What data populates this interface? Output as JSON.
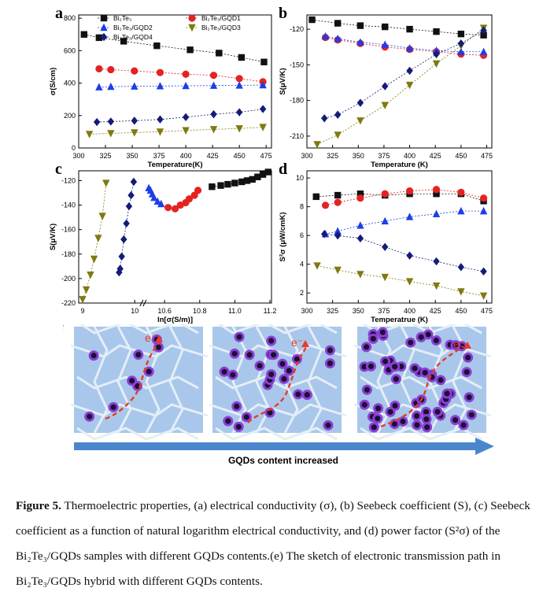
{
  "figure": {
    "caption_bold": "Figure 5.",
    "caption_text": "Thermoelectric properties, (a) electrical conductivity (σ), (b) Seebeck coefficient (S), (c) Seebeck coefficient as a function of natural logarithm electrical conductivity, and (d) power factor (S²σ) of the Bi₂Te₃/GQDs samples with different GQDs contents.(e) The sketch of electronic transmission path in Bi₂Te₃/GQDs hybrid with different GQDs contents.",
    "sketch_label": "e",
    "sketch_arrow_text": "GQDs content increased",
    "electron_label": "e⁻",
    "colors": {
      "cell": "#a9c7ea",
      "border": "#e4eef8",
      "dot_edge": "#8b3fd6",
      "dot_core": "#1a1030",
      "path": "#e83a2a",
      "arrow": "#4a86cc"
    }
  },
  "chart_data": [
    {
      "panel": "a",
      "type": "scatter",
      "xlabel": "Temperature(K)",
      "ylabel": "σ(S/cm)",
      "xlim": [
        300,
        480
      ],
      "ylim": [
        0,
        820
      ],
      "xticks": [
        300,
        325,
        350,
        375,
        400,
        425,
        450,
        475
      ],
      "yticks": [
        0,
        200,
        400,
        600,
        800
      ],
      "legend": "top",
      "series": [
        {
          "name": "Bi₂Te₃",
          "color": "#111111",
          "marker": "square",
          "x": [
            305,
            319,
            342,
            373,
            404,
            431,
            452,
            473
          ],
          "y": [
            700,
            680,
            658,
            630,
            605,
            585,
            558,
            530
          ]
        },
        {
          "name": "Bi₂Te₃/GQD1",
          "color": "#e52222",
          "marker": "circle",
          "x": [
            319,
            330,
            352,
            376,
            400,
            426,
            450,
            472
          ],
          "y": [
            488,
            483,
            475,
            465,
            455,
            448,
            428,
            408
          ]
        },
        {
          "name": "Bi₂Te₃/GQD2",
          "color": "#1d3ee6",
          "marker": "triangle-up",
          "x": [
            319,
            330,
            352,
            376,
            400,
            426,
            450,
            472
          ],
          "y": [
            375,
            378,
            380,
            382,
            383,
            385,
            386,
            388
          ]
        },
        {
          "name": "Bi₂Te₃/GQD3",
          "color": "#7e7a10",
          "marker": "triangle-down",
          "x": [
            310,
            330,
            352,
            376,
            400,
            426,
            450,
            472
          ],
          "y": [
            85,
            90,
            95,
            100,
            108,
            115,
            120,
            128
          ]
        },
        {
          "name": "Bi₂Te₃/GQD4",
          "color": "#141c78",
          "marker": "diamond",
          "x": [
            317,
            330,
            352,
            376,
            400,
            426,
            450,
            472
          ],
          "y": [
            160,
            163,
            168,
            176,
            190,
            208,
            220,
            240
          ]
        }
      ]
    },
    {
      "panel": "b",
      "type": "scatter",
      "xlabel": "Temperature (K)",
      "ylabel": "S(μV/K)",
      "xlim": [
        300,
        480
      ],
      "ylim": [
        -220,
        -108
      ],
      "xticks": [
        300,
        325,
        350,
        375,
        400,
        425,
        450,
        475
      ],
      "yticks": [
        -120,
        -150,
        -180,
        -210
      ],
      "series": [
        {
          "name": "Bi₂Te₃",
          "color": "#111111",
          "marker": "square",
          "x": [
            305,
            330,
            352,
            376,
            400,
            426,
            450,
            472
          ],
          "y": [
            -112,
            -115,
            -117,
            -118,
            -120,
            -122,
            -124,
            -125
          ]
        },
        {
          "name": "Bi₂Te₃/GQD1",
          "color": "#e52222",
          "marker": "circle",
          "x": [
            318,
            330,
            352,
            376,
            400,
            426,
            450,
            472
          ],
          "y": [
            -127,
            -129,
            -132,
            -135,
            -137,
            -139,
            -141,
            -142
          ]
        },
        {
          "name": "Bi₂Te₃/GQD2",
          "color": "#1d3ee6",
          "marker": "triangle-up",
          "x": [
            318,
            330,
            352,
            376,
            400,
            426,
            450,
            472
          ],
          "y": [
            -126,
            -128,
            -131,
            -133,
            -136,
            -138,
            -139,
            -139
          ]
        },
        {
          "name": "Bi₂Te₃/GQD3",
          "color": "#7e7a10",
          "marker": "triangle-down",
          "x": [
            310,
            330,
            352,
            376,
            400,
            426,
            450,
            472
          ],
          "y": [
            -217,
            -209,
            -197,
            -184,
            -167,
            -149,
            -134,
            -119
          ]
        },
        {
          "name": "Bi₂Te₃/GQD4",
          "color": "#141c78",
          "marker": "diamond",
          "x": [
            317,
            330,
            352,
            376,
            400,
            426,
            450,
            472
          ],
          "y": [
            -195,
            -192,
            -182,
            -168,
            -155,
            -141,
            -132,
            -121
          ]
        }
      ]
    },
    {
      "panel": "c",
      "type": "scatter",
      "xlabel": "ln[σ(S/m)]",
      "ylabel": "S(μV/K)",
      "axis_break": true,
      "xticks": [
        "9",
        "10",
        "10.6",
        "10.8",
        "11.0",
        "11.2"
      ],
      "ylim": [
        -220,
        -112
      ],
      "yticks": [
        -120,
        -140,
        -160,
        -180,
        -200,
        -220
      ],
      "series": [
        {
          "name": "Bi₂Te₃",
          "color": "#111111",
          "marker": "square",
          "x": [
            10.87,
            10.92,
            10.96,
            11.0,
            11.04,
            11.07,
            11.1,
            11.13,
            11.16,
            11.19
          ],
          "y": [
            -125,
            -124,
            -123,
            -122,
            -121,
            -120,
            -119,
            -117,
            -115,
            -113
          ]
        },
        {
          "name": "Bi₂Te₃/GQD1",
          "color": "#e52222",
          "marker": "circle",
          "x": [
            10.62,
            10.66,
            10.69,
            10.72,
            10.74,
            10.77,
            10.79
          ],
          "y": [
            -142,
            -143,
            -140,
            -138,
            -135,
            -132,
            -128
          ]
        },
        {
          "name": "Bi₂Te₃/GQD2",
          "color": "#1d3ee6",
          "marker": "triangle-up",
          "x": [
            10.51,
            10.52,
            10.53,
            10.54,
            10.56,
            10.58
          ],
          "y": [
            -126,
            -128,
            -131,
            -134,
            -137,
            -139
          ]
        },
        {
          "name": "Bi₂Te₃/GQD3",
          "color": "#7e7a10",
          "marker": "triangle-down",
          "x": [
            9.0,
            9.07,
            9.15,
            9.22,
            9.3,
            9.38,
            9.45
          ],
          "y": [
            -217,
            -209,
            -197,
            -184,
            -167,
            -149,
            -122
          ]
        },
        {
          "name": "Bi₂Te₃/GQD4",
          "color": "#141c78",
          "marker": "diamond",
          "x": [
            9.7,
            9.72,
            9.75,
            9.79,
            9.84,
            9.89,
            9.93,
            9.98
          ],
          "y": [
            -195,
            -192,
            -182,
            -168,
            -155,
            -141,
            -132,
            -121
          ]
        }
      ]
    },
    {
      "panel": "d",
      "type": "scatter",
      "xlabel": "Temperatrue (K)",
      "ylabel": "S²σ (μW/cmK)",
      "xlim": [
        300,
        480
      ],
      "ylim": [
        1.3,
        10.5
      ],
      "xticks": [
        300,
        325,
        350,
        375,
        400,
        425,
        450,
        475
      ],
      "yticks": [
        2,
        4,
        6,
        8,
        10
      ],
      "series": [
        {
          "name": "Bi₂Te₃",
          "color": "#111111",
          "marker": "square",
          "x": [
            309,
            330,
            352,
            376,
            400,
            426,
            450,
            472
          ],
          "y": [
            8.7,
            8.8,
            8.9,
            8.8,
            8.9,
            8.9,
            8.9,
            8.4
          ]
        },
        {
          "name": "Bi₂Te₃/GQD1",
          "color": "#e52222",
          "marker": "circle",
          "x": [
            318,
            330,
            352,
            376,
            400,
            426,
            450,
            472
          ],
          "y": [
            8.1,
            8.3,
            8.6,
            8.9,
            9.1,
            9.2,
            9.0,
            8.6
          ]
        },
        {
          "name": "Bi₂Te₃/GQD2",
          "color": "#1d3ee6",
          "marker": "triangle-up",
          "x": [
            318,
            330,
            352,
            376,
            400,
            426,
            450,
            472
          ],
          "y": [
            6.1,
            6.3,
            6.7,
            7.0,
            7.3,
            7.5,
            7.7,
            7.7
          ]
        },
        {
          "name": "Bi₂Te₃/GQD3",
          "color": "#7e7a10",
          "marker": "triangle-down",
          "x": [
            310,
            330,
            352,
            376,
            400,
            426,
            450,
            472
          ],
          "y": [
            3.9,
            3.6,
            3.3,
            3.1,
            2.8,
            2.5,
            2.1,
            1.8
          ]
        },
        {
          "name": "Bi₂Te₃/GQD4",
          "color": "#141c78",
          "marker": "diamond",
          "x": [
            317,
            330,
            352,
            376,
            400,
            426,
            450,
            472
          ],
          "y": [
            6.1,
            6.0,
            5.8,
            5.2,
            4.6,
            4.2,
            3.8,
            3.5
          ]
        }
      ]
    }
  ]
}
